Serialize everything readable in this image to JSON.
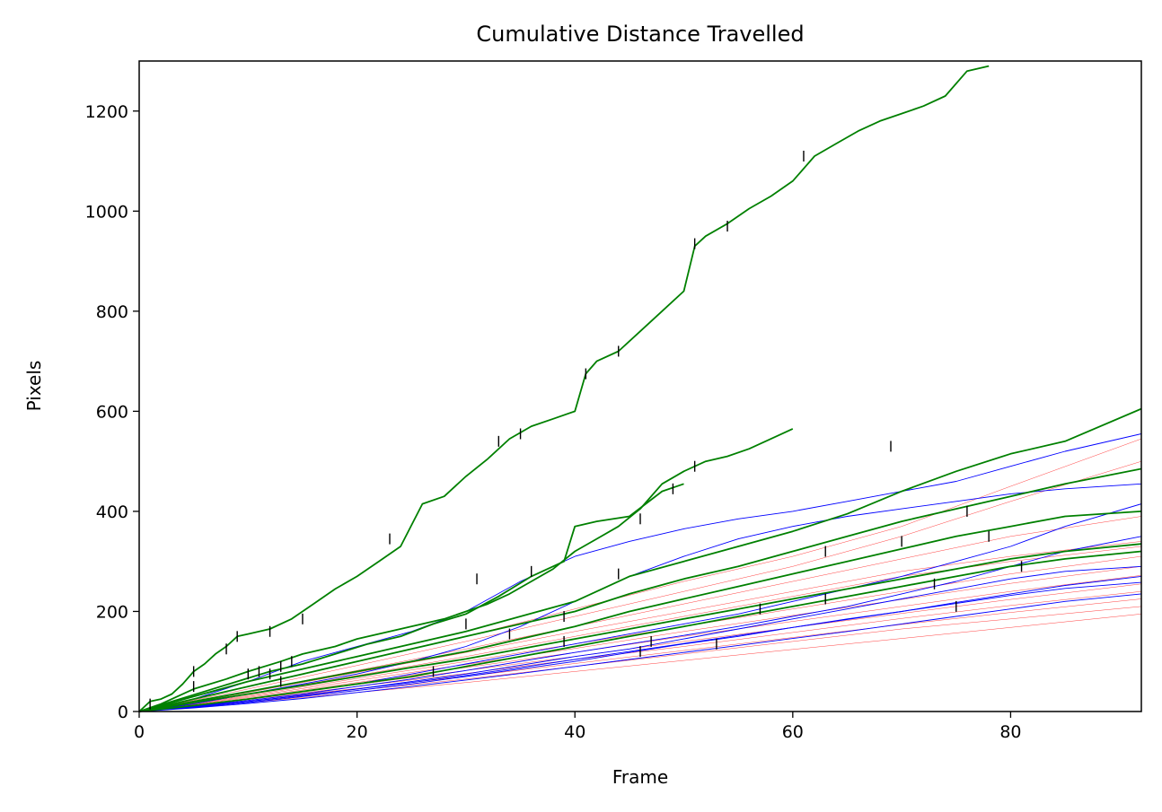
{
  "chart_data": {
    "type": "line",
    "title": "Cumulative Distance Travelled",
    "xlabel": "Frame",
    "ylabel": "Pixels",
    "xlim": [
      0,
      92
    ],
    "ylim": [
      0,
      1300
    ],
    "xticks": [
      0,
      20,
      40,
      60,
      80
    ],
    "yticks": [
      0,
      200,
      400,
      600,
      800,
      1000,
      1200
    ],
    "grid": false,
    "legend": "none",
    "colors": {
      "green": "#008000",
      "blue": "#0000ff",
      "red": "#ff0000",
      "marker": "#000000"
    },
    "series": [
      {
        "color": "green",
        "x": [
          0,
          1,
          2,
          3,
          4,
          5,
          6,
          7,
          8,
          9,
          10,
          12,
          14,
          16,
          18,
          20,
          22,
          24,
          26,
          28,
          30,
          32,
          34,
          36,
          38,
          40,
          41,
          42,
          44,
          46,
          48,
          50,
          51,
          52,
          54,
          56,
          58,
          60,
          62,
          64,
          66,
          68,
          70,
          72,
          74,
          76,
          78
        ],
        "y": [
          0,
          20,
          25,
          35,
          55,
          80,
          95,
          115,
          130,
          150,
          155,
          165,
          185,
          215,
          245,
          270,
          300,
          330,
          415,
          430,
          470,
          505,
          545,
          570,
          585,
          600,
          675,
          700,
          720,
          760,
          800,
          840,
          930,
          950,
          975,
          1005,
          1030,
          1060,
          1110,
          1135,
          1160,
          1180,
          1195,
          1210,
          1230,
          1280,
          1290
        ]
      },
      {
        "color": "green",
        "x": [
          0,
          2,
          5,
          8,
          10,
          13,
          15,
          18,
          20,
          23,
          26,
          28,
          30,
          32,
          34,
          36,
          38,
          40,
          42,
          44,
          46,
          48,
          50,
          52,
          54,
          56,
          58,
          60
        ],
        "y": [
          0,
          15,
          45,
          65,
          80,
          100,
          115,
          130,
          145,
          160,
          175,
          185,
          200,
          215,
          235,
          260,
          285,
          320,
          345,
          370,
          405,
          455,
          480,
          500,
          510,
          525,
          545,
          565
        ]
      },
      {
        "color": "green",
        "x": [
          0,
          3,
          6,
          9,
          12,
          15,
          18,
          21,
          24,
          27,
          30,
          33,
          36,
          39,
          40,
          42,
          45,
          48,
          50
        ],
        "y": [
          0,
          20,
          40,
          60,
          80,
          95,
          115,
          135,
          150,
          175,
          195,
          230,
          270,
          300,
          370,
          380,
          390,
          440,
          455
        ]
      },
      {
        "color": "green",
        "x": [
          0,
          5,
          10,
          15,
          20,
          25,
          30,
          35,
          40,
          45,
          50,
          55,
          60,
          65,
          70,
          75,
          80,
          85,
          92
        ],
        "y": [
          0,
          30,
          60,
          85,
          110,
          135,
          160,
          190,
          220,
          270,
          300,
          330,
          360,
          395,
          440,
          480,
          515,
          540,
          605
        ]
      },
      {
        "color": "green",
        "x": [
          0,
          5,
          10,
          15,
          20,
          25,
          30,
          35,
          40,
          45,
          50,
          55,
          60,
          65,
          70,
          75,
          80,
          85,
          92
        ],
        "y": [
          0,
          25,
          50,
          75,
          100,
          125,
          150,
          175,
          200,
          235,
          265,
          290,
          320,
          350,
          380,
          405,
          430,
          455,
          485
        ]
      },
      {
        "color": "green",
        "x": [
          0,
          5,
          10,
          15,
          20,
          25,
          30,
          35,
          40,
          45,
          50,
          55,
          60,
          65,
          70,
          75,
          80,
          85,
          92
        ],
        "y": [
          0,
          20,
          40,
          60,
          80,
          100,
          120,
          145,
          170,
          200,
          225,
          250,
          275,
          300,
          325,
          350,
          370,
          390,
          400
        ]
      },
      {
        "color": "green",
        "x": [
          0,
          5,
          10,
          15,
          20,
          25,
          30,
          35,
          40,
          45,
          50,
          55,
          60,
          65,
          70,
          75,
          80,
          85,
          92
        ],
        "y": [
          0,
          18,
          35,
          52,
          70,
          88,
          105,
          125,
          145,
          165,
          185,
          205,
          225,
          245,
          265,
          285,
          305,
          320,
          335
        ]
      },
      {
        "color": "green",
        "x": [
          0,
          5,
          10,
          15,
          20,
          25,
          30,
          35,
          40,
          45,
          50,
          55,
          60,
          65,
          70,
          75,
          80,
          85,
          92
        ],
        "y": [
          0,
          12,
          25,
          40,
          55,
          70,
          90,
          110,
          130,
          150,
          170,
          190,
          210,
          230,
          250,
          270,
          290,
          305,
          320
        ]
      },
      {
        "color": "blue",
        "x": [
          0,
          5,
          10,
          15,
          20,
          25,
          30,
          35,
          40,
          45,
          50,
          55,
          60,
          65,
          70,
          75,
          80,
          85,
          92
        ],
        "y": [
          0,
          25,
          60,
          100,
          130,
          160,
          200,
          260,
          310,
          340,
          365,
          385,
          400,
          420,
          440,
          460,
          490,
          520,
          555
        ]
      },
      {
        "color": "blue",
        "x": [
          0,
          5,
          10,
          15,
          20,
          25,
          30,
          35,
          40,
          45,
          50,
          55,
          60,
          65,
          70,
          75,
          80,
          85,
          92
        ],
        "y": [
          0,
          15,
          35,
          55,
          75,
          100,
          130,
          170,
          220,
          270,
          310,
          345,
          370,
          390,
          405,
          420,
          435,
          445,
          455
        ]
      },
      {
        "color": "blue",
        "x": [
          0,
          5,
          10,
          15,
          20,
          25,
          30,
          35,
          40,
          45,
          50,
          55,
          60,
          65,
          70,
          75,
          80,
          85,
          92
        ],
        "y": [
          0,
          10,
          25,
          40,
          55,
          75,
          95,
          115,
          135,
          155,
          175,
          195,
          220,
          245,
          270,
          300,
          330,
          370,
          415
        ]
      },
      {
        "color": "blue",
        "x": [
          0,
          5,
          10,
          15,
          20,
          25,
          30,
          35,
          40,
          45,
          50,
          55,
          60,
          65,
          70,
          75,
          80,
          85,
          92
        ],
        "y": [
          0,
          10,
          22,
          35,
          50,
          65,
          82,
          100,
          118,
          135,
          152,
          170,
          190,
          210,
          235,
          260,
          290,
          320,
          350
        ]
      },
      {
        "color": "blue",
        "x": [
          0,
          5,
          10,
          15,
          20,
          25,
          30,
          35,
          40,
          45,
          50,
          55,
          60,
          65,
          70,
          75,
          80,
          85,
          92
        ],
        "y": [
          0,
          8,
          18,
          30,
          42,
          55,
          70,
          85,
          100,
          118,
          135,
          150,
          168,
          185,
          200,
          218,
          235,
          252,
          270
        ]
      },
      {
        "color": "blue",
        "x": [
          0,
          5,
          10,
          15,
          20,
          25,
          30,
          35,
          40,
          45,
          50,
          55,
          60,
          65,
          70,
          75,
          80,
          85,
          92
        ],
        "y": [
          0,
          7,
          16,
          26,
          38,
          50,
          63,
          76,
          90,
          104,
          118,
          132,
          146,
          160,
          175,
          190,
          205,
          220,
          235
        ]
      },
      {
        "color": "blue",
        "x": [
          0,
          5,
          10,
          15,
          20,
          25,
          30,
          35,
          40,
          45,
          50,
          55,
          60,
          65,
          70,
          75,
          80,
          85,
          92
        ],
        "y": [
          0,
          9,
          20,
          32,
          45,
          58,
          72,
          88,
          104,
          120,
          136,
          152,
          168,
          184,
          200,
          216,
          232,
          246,
          258
        ]
      },
      {
        "color": "blue",
        "x": [
          0,
          10,
          20,
          30,
          40,
          45,
          50,
          55,
          60,
          65,
          70,
          75,
          80,
          85,
          92
        ],
        "y": [
          0,
          20,
          45,
          75,
          110,
          125,
          145,
          165,
          185,
          205,
          225,
          245,
          265,
          280,
          290
        ]
      },
      {
        "color": "red",
        "x": [
          0,
          10,
          20,
          30,
          40,
          50,
          60,
          70,
          80,
          92
        ],
        "y": [
          0,
          20,
          42,
          65,
          90,
          115,
          140,
          165,
          185,
          210
        ]
      },
      {
        "color": "red",
        "x": [
          0,
          10,
          20,
          30,
          40,
          50,
          60,
          70,
          80,
          92
        ],
        "y": [
          0,
          22,
          46,
          70,
          96,
          122,
          148,
          174,
          198,
          225
        ]
      },
      {
        "color": "red",
        "x": [
          0,
          10,
          20,
          30,
          40,
          50,
          60,
          70,
          80,
          92
        ],
        "y": [
          0,
          24,
          50,
          76,
          104,
          130,
          158,
          186,
          212,
          240
        ]
      },
      {
        "color": "red",
        "x": [
          0,
          10,
          20,
          30,
          40,
          50,
          60,
          70,
          80,
          92
        ],
        "y": [
          0,
          26,
          54,
          82,
          110,
          140,
          168,
          196,
          224,
          255
        ]
      },
      {
        "color": "red",
        "x": [
          0,
          10,
          20,
          30,
          40,
          50,
          60,
          70,
          80,
          92
        ],
        "y": [
          0,
          28,
          58,
          88,
          118,
          150,
          180,
          210,
          240,
          272
        ]
      },
      {
        "color": "red",
        "x": [
          0,
          10,
          20,
          30,
          40,
          50,
          60,
          70,
          80,
          92
        ],
        "y": [
          0,
          30,
          62,
          94,
          126,
          160,
          192,
          224,
          256,
          290
        ]
      },
      {
        "color": "red",
        "x": [
          0,
          10,
          20,
          30,
          40,
          50,
          60,
          70,
          80,
          92
        ],
        "y": [
          0,
          32,
          66,
          100,
          135,
          170,
          205,
          240,
          275,
          310
        ]
      },
      {
        "color": "red",
        "x": [
          0,
          10,
          20,
          30,
          40,
          50,
          60,
          70,
          80,
          92
        ],
        "y": [
          0,
          18,
          38,
          58,
          80,
          102,
          124,
          146,
          168,
          195
        ]
      },
      {
        "color": "red",
        "x": [
          0,
          10,
          20,
          30,
          40,
          50,
          60,
          70,
          80,
          92
        ],
        "y": [
          0,
          35,
          72,
          110,
          150,
          190,
          230,
          270,
          300,
          330
        ]
      },
      {
        "color": "red",
        "x": [
          0,
          10,
          20,
          30,
          40,
          50,
          60,
          70,
          80,
          92
        ],
        "y": [
          0,
          40,
          82,
          125,
          170,
          215,
          260,
          305,
          350,
          390
        ]
      },
      {
        "color": "red",
        "x": [
          0,
          10,
          20,
          30,
          40,
          50,
          60,
          70,
          80,
          92
        ],
        "y": [
          0,
          45,
          92,
          140,
          190,
          240,
          290,
          350,
          420,
          500
        ]
      },
      {
        "color": "red",
        "x": [
          0,
          10,
          20,
          30,
          40,
          50,
          60,
          70,
          80,
          92
        ],
        "y": [
          0,
          38,
          78,
          118,
          160,
          200,
          240,
          280,
          310,
          340
        ]
      },
      {
        "color": "red",
        "x": [
          0,
          10,
          20,
          30,
          40,
          50,
          60,
          70,
          80,
          92
        ],
        "y": [
          0,
          50,
          100,
          150,
          205,
          260,
          310,
          370,
          450,
          545
        ]
      }
    ],
    "markers": [
      [
        1,
        15
      ],
      [
        5,
        80
      ],
      [
        5,
        50
      ],
      [
        8,
        125
      ],
      [
        9,
        150
      ],
      [
        10,
        75
      ],
      [
        11,
        80
      ],
      [
        12,
        160
      ],
      [
        12,
        75
      ],
      [
        13,
        90
      ],
      [
        13,
        60
      ],
      [
        14,
        100
      ],
      [
        15,
        185
      ],
      [
        23,
        345
      ],
      [
        27,
        80
      ],
      [
        30,
        175
      ],
      [
        31,
        265
      ],
      [
        33,
        540
      ],
      [
        34,
        155
      ],
      [
        35,
        555
      ],
      [
        36,
        280
      ],
      [
        39,
        190
      ],
      [
        39,
        140
      ],
      [
        41,
        675
      ],
      [
        44,
        720
      ],
      [
        44,
        275
      ],
      [
        46,
        385
      ],
      [
        46,
        120
      ],
      [
        47,
        140
      ],
      [
        49,
        445
      ],
      [
        51,
        935
      ],
      [
        51,
        490
      ],
      [
        53,
        135
      ],
      [
        54,
        970
      ],
      [
        57,
        205
      ],
      [
        61,
        1110
      ],
      [
        63,
        320
      ],
      [
        63,
        225
      ],
      [
        69,
        530
      ],
      [
        70,
        340
      ],
      [
        73,
        255
      ],
      [
        75,
        210
      ],
      [
        76,
        400
      ],
      [
        78,
        350
      ],
      [
        81,
        290
      ]
    ]
  }
}
